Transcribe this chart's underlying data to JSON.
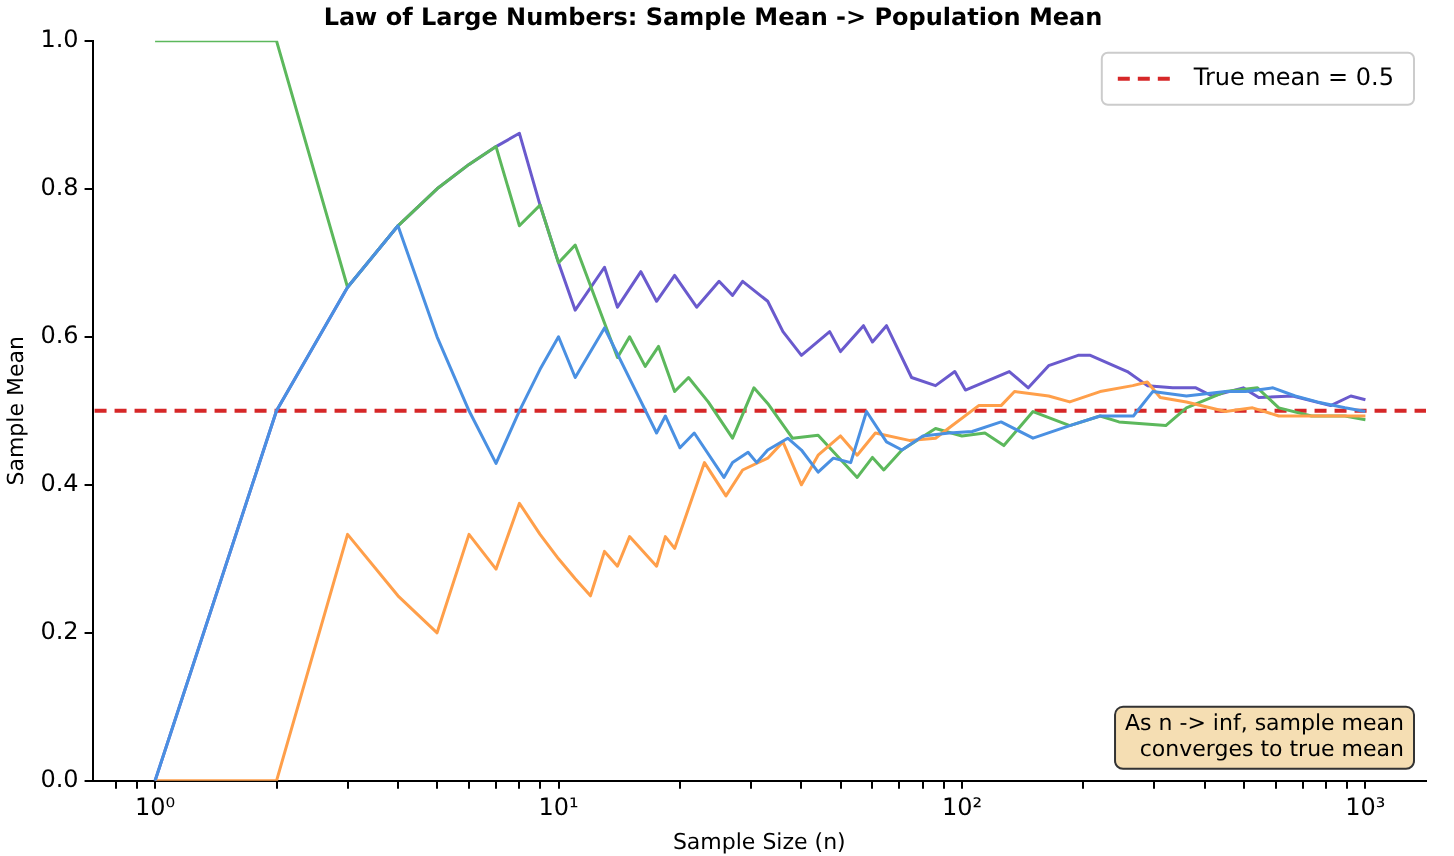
{
  "chart_data": {
    "type": "line",
    "title": "Law of Large Numbers: Sample Mean -> Population Mean",
    "xlabel": "Sample Size (n)",
    "ylabel": "Sample Mean",
    "log": "x",
    "xlim": [
      0.708,
      1413
    ],
    "ylim": [
      0,
      1
    ],
    "xticks": [
      {
        "value": 0.8,
        "label": null
      },
      {
        "value": 0.9,
        "label": null
      },
      {
        "value": 1,
        "label": "10⁰"
      },
      {
        "value": 2,
        "label": null
      },
      {
        "value": 3,
        "label": null
      },
      {
        "value": 4,
        "label": null
      },
      {
        "value": 5,
        "label": null
      },
      {
        "value": 6,
        "label": null
      },
      {
        "value": 7,
        "label": null
      },
      {
        "value": 8,
        "label": null
      },
      {
        "value": 9,
        "label": null
      },
      {
        "value": 10,
        "label": "10¹"
      },
      {
        "value": 20,
        "label": null
      },
      {
        "value": 30,
        "label": null
      },
      {
        "value": 40,
        "label": null
      },
      {
        "value": 50,
        "label": null
      },
      {
        "value": 60,
        "label": null
      },
      {
        "value": 70,
        "label": null
      },
      {
        "value": 80,
        "label": null
      },
      {
        "value": 90,
        "label": null
      },
      {
        "value": 100,
        "label": "10²"
      },
      {
        "value": 200,
        "label": null
      },
      {
        "value": 300,
        "label": null
      },
      {
        "value": 400,
        "label": null
      },
      {
        "value": 500,
        "label": null
      },
      {
        "value": 600,
        "label": null
      },
      {
        "value": 700,
        "label": null
      },
      {
        "value": 800,
        "label": null
      },
      {
        "value": 900,
        "label": null
      },
      {
        "value": 1000,
        "label": "10³"
      }
    ],
    "yticks": [
      {
        "value": 0,
        "label": "0.0"
      },
      {
        "value": 0.2,
        "label": "0.2"
      },
      {
        "value": 0.4,
        "label": "0.4"
      },
      {
        "value": 0.6,
        "label": "0.6"
      },
      {
        "value": 0.8,
        "label": "0.8"
      },
      {
        "value": 1,
        "label": "1.0"
      }
    ],
    "grid": false,
    "legend": "top right",
    "marker": "none",
    "line_style": "solid",
    "series": [
      {
        "color": "#4a90e2",
        "x": [
          1,
          2,
          3,
          4,
          5,
          6,
          7,
          8,
          9,
          10,
          11,
          13,
          17.5,
          18.4,
          20,
          21.7,
          25.7,
          27,
          29.5,
          31,
          33,
          37,
          40,
          44,
          48,
          53,
          58,
          65,
          71,
          80,
          93,
          106,
          125,
          150,
          185,
          220,
          266,
          297,
          360,
          450,
          505,
          590,
          670,
          760,
          890,
          1000
        ],
        "values": [
          0,
          0.5,
          0.667,
          0.75,
          0.6,
          0.5,
          0.429,
          0.5,
          0.556,
          0.6,
          0.545,
          0.612,
          0.47,
          0.493,
          0.45,
          0.47,
          0.41,
          0.43,
          0.444,
          0.43,
          0.447,
          0.463,
          0.447,
          0.417,
          0.436,
          0.43,
          0.499,
          0.458,
          0.447,
          0.466,
          0.47,
          0.472,
          0.485,
          0.463,
          0.48,
          0.493,
          0.493,
          0.526,
          0.52,
          0.526,
          0.526,
          0.531,
          0.52,
          0.512,
          0.504,
          0.499
        ]
      },
      {
        "color": "#ff9f4a",
        "x": [
          1,
          2,
          3,
          4,
          5,
          6,
          7,
          8,
          9,
          10,
          11,
          12,
          13,
          14,
          15,
          17.5,
          18.4,
          19.4,
          23,
          26,
          28.6,
          33,
          36,
          40,
          44,
          50,
          55,
          61,
          74,
          86,
          93,
          110,
          125,
          135,
          164,
          185,
          220,
          265,
          288,
          310,
          360,
          450,
          525,
          610,
          735,
          820,
          1000
        ],
        "values": [
          0,
          0,
          0.333,
          0.25,
          0.2,
          0.333,
          0.286,
          0.375,
          0.333,
          0.3,
          0.273,
          0.25,
          0.31,
          0.29,
          0.33,
          0.29,
          0.33,
          0.314,
          0.43,
          0.385,
          0.42,
          0.436,
          0.458,
          0.4,
          0.44,
          0.466,
          0.44,
          0.47,
          0.46,
          0.463,
          0.477,
          0.507,
          0.507,
          0.526,
          0.52,
          0.512,
          0.526,
          0.534,
          0.539,
          0.518,
          0.512,
          0.499,
          0.504,
          0.493,
          0.493,
          0.493,
          0.493
        ]
      },
      {
        "color": "#5cb85c",
        "x": [
          1,
          2,
          3,
          4,
          5,
          6,
          7,
          8,
          9,
          10,
          11,
          14,
          15,
          16.4,
          17.7,
          19.4,
          21,
          23.5,
          27,
          30.5,
          33,
          38,
          44,
          55,
          60,
          64,
          71,
          86,
          100,
          114,
          127,
          150,
          185,
          220,
          245,
          320,
          360,
          450,
          540,
          610,
          735,
          890,
          1000
        ],
        "values": [
          1,
          1,
          0.667,
          0.75,
          0.8,
          0.833,
          0.857,
          0.75,
          0.778,
          0.7,
          0.724,
          0.572,
          0.6,
          0.56,
          0.587,
          0.526,
          0.545,
          0.512,
          0.463,
          0.531,
          0.51,
          0.463,
          0.467,
          0.41,
          0.437,
          0.42,
          0.447,
          0.476,
          0.466,
          0.47,
          0.453,
          0.499,
          0.48,
          0.493,
          0.485,
          0.48,
          0.504,
          0.526,
          0.531,
          0.504,
          0.493,
          0.493,
          0.488
        ]
      },
      {
        "color": "#6a5acd",
        "x": [
          1,
          2,
          3,
          4,
          5,
          6,
          7,
          8,
          9,
          10,
          11,
          13,
          14,
          16,
          17.5,
          19.4,
          22,
          25,
          27,
          28.6,
          33,
          36,
          40,
          47,
          50,
          57,
          60,
          65,
          75,
          86,
          96,
          102,
          131,
          146,
          164,
          194,
          208,
          257,
          288,
          333,
          380,
          417,
          498,
          544,
          660,
          820,
          920,
          1000
        ],
        "values": [
          0,
          0.5,
          0.667,
          0.75,
          0.8,
          0.833,
          0.857,
          0.875,
          0.778,
          0.7,
          0.636,
          0.694,
          0.64,
          0.688,
          0.648,
          0.683,
          0.64,
          0.675,
          0.656,
          0.675,
          0.648,
          0.607,
          0.575,
          0.607,
          0.58,
          0.615,
          0.593,
          0.615,
          0.545,
          0.534,
          0.553,
          0.528,
          0.553,
          0.531,
          0.561,
          0.575,
          0.575,
          0.553,
          0.534,
          0.531,
          0.531,
          0.52,
          0.531,
          0.518,
          0.52,
          0.507,
          0.52,
          0.515
        ]
      }
    ],
    "ref_lines": [
      {
        "axis": "y",
        "value": 0.5,
        "label": "True mean = 0.5",
        "color": "#d62728",
        "line_style": "dashed"
      }
    ],
    "annotations": [
      "As n -> inf, sample mean\nconverges to true mean"
    ]
  }
}
